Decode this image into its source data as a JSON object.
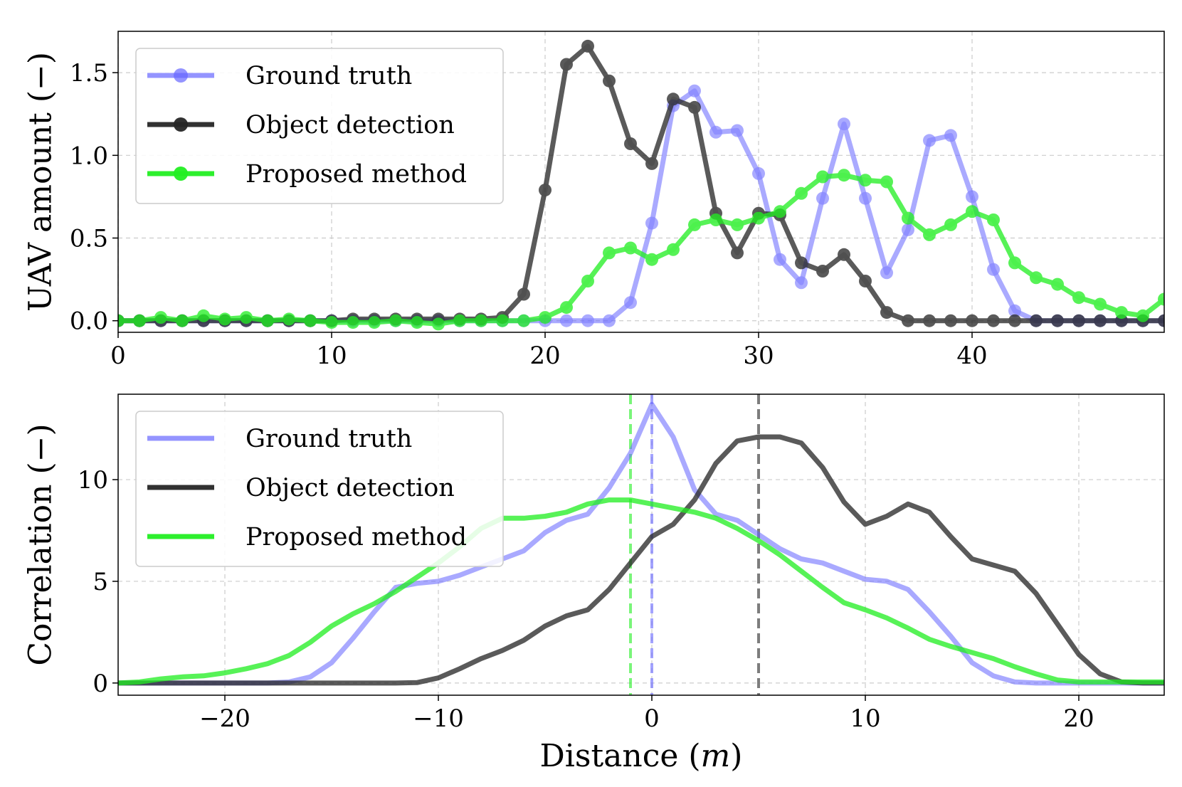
{
  "chart_data": [
    {
      "type": "line",
      "xlabel": "",
      "ylabel": "UAV amount (−)",
      "xlim": [
        0,
        49
      ],
      "ylim": [
        -0.07,
        1.75
      ],
      "xticks": [
        0,
        10,
        20,
        30,
        40
      ],
      "xtick_labels": [
        "0",
        "10",
        "20",
        "30",
        "40"
      ],
      "yticks": [
        0.0,
        0.5,
        1.0,
        1.5
      ],
      "ytick_labels": [
        "0.0",
        "0.5",
        "1.0",
        "1.5"
      ],
      "grid": true,
      "legend_position": "top-left",
      "markers": true,
      "x": [
        0,
        1,
        2,
        3,
        4,
        5,
        6,
        7,
        8,
        9,
        10,
        11,
        12,
        13,
        14,
        15,
        16,
        17,
        18,
        19,
        20,
        21,
        22,
        23,
        24,
        25,
        26,
        27,
        28,
        29,
        30,
        31,
        32,
        33,
        34,
        35,
        36,
        37,
        38,
        39,
        40,
        41,
        42,
        43,
        44,
        45,
        46,
        47,
        48,
        49
      ],
      "series": [
        {
          "name": "Ground truth",
          "color": "#6666ff",
          "values": [
            0,
            0,
            0,
            0,
            0,
            0,
            0,
            0,
            0,
            0,
            0,
            0,
            0,
            0,
            0,
            0,
            0,
            0,
            0,
            0,
            0,
            0,
            0,
            0,
            0.11,
            0.59,
            1.3,
            1.39,
            1.14,
            1.15,
            0.89,
            0.37,
            0.23,
            0.74,
            1.19,
            0.74,
            0.29,
            0.55,
            1.09,
            1.12,
            0.75,
            0.31,
            0.06,
            0,
            0,
            0,
            0,
            0,
            0,
            0
          ]
        },
        {
          "name": "Object detection",
          "color": "#262626",
          "values": [
            0,
            0,
            0,
            0,
            0,
            0,
            0,
            0,
            0,
            0,
            0,
            0.01,
            0.01,
            0.01,
            0.01,
            0.01,
            0.01,
            0.01,
            0.02,
            0.16,
            0.79,
            1.55,
            1.66,
            1.45,
            1.07,
            0.95,
            1.34,
            1.29,
            0.65,
            0.41,
            0.65,
            0.64,
            0.35,
            0.3,
            0.4,
            0.24,
            0.05,
            0,
            0,
            0,
            0,
            0,
            0,
            0,
            0,
            0,
            0,
            0,
            0,
            0
          ]
        },
        {
          "name": "Proposed method",
          "color": "#22ee22",
          "values": [
            0,
            0,
            0.02,
            0,
            0.03,
            0.01,
            0.02,
            0,
            0.01,
            0,
            -0.01,
            -0.01,
            -0.01,
            0,
            -0.01,
            -0.02,
            0,
            0,
            0,
            0,
            0.02,
            0.08,
            0.24,
            0.41,
            0.44,
            0.37,
            0.43,
            0.58,
            0.61,
            0.58,
            0.62,
            0.66,
            0.77,
            0.87,
            0.88,
            0.85,
            0.84,
            0.62,
            0.52,
            0.58,
            0.66,
            0.61,
            0.35,
            0.26,
            0.22,
            0.14,
            0.1,
            0.05,
            0.03,
            0.13
          ]
        }
      ]
    },
    {
      "type": "line",
      "xlabel": "Distance (m)",
      "ylabel": "Correlation (−)",
      "xlim": [
        -25,
        24
      ],
      "ylim": [
        -0.6,
        14.2
      ],
      "xticks": [
        -20,
        -10,
        0,
        10,
        20
      ],
      "xtick_labels": [
        "−20",
        "−10",
        "0",
        "10",
        "20"
      ],
      "yticks": [
        0,
        5,
        10
      ],
      "ytick_labels": [
        "0",
        "5",
        "10"
      ],
      "grid": true,
      "legend_position": "top-left",
      "markers": false,
      "x": [
        -25,
        -24,
        -23,
        -22,
        -21,
        -20,
        -19,
        -18,
        -17,
        -16,
        -15,
        -14,
        -13,
        -12,
        -11,
        -10,
        -9,
        -8,
        -7,
        -6,
        -5,
        -4,
        -3,
        -2,
        -1,
        0,
        1,
        2,
        3,
        4,
        5,
        6,
        7,
        8,
        9,
        10,
        11,
        12,
        13,
        14,
        15,
        16,
        17,
        18,
        19,
        20,
        21,
        22,
        23,
        24
      ],
      "series": [
        {
          "name": "Ground truth",
          "color": "#6666ff",
          "values": [
            0,
            0,
            0,
            0,
            0,
            0,
            0,
            0,
            0.05,
            0.3,
            1.0,
            2.2,
            3.5,
            4.7,
            4.9,
            5.0,
            5.3,
            5.7,
            6.1,
            6.5,
            7.4,
            8.0,
            8.3,
            9.6,
            11.3,
            13.7,
            12.1,
            9.5,
            8.3,
            8.0,
            7.3,
            6.6,
            6.1,
            5.9,
            5.5,
            5.1,
            5.0,
            4.6,
            3.5,
            2.3,
            1.0,
            0.35,
            0.05,
            0,
            0,
            0,
            0,
            0,
            0,
            0
          ]
        },
        {
          "name": "Object detection",
          "color": "#262626",
          "values": [
            0,
            0,
            0,
            0,
            0,
            0,
            0,
            0,
            0,
            0,
            0,
            0,
            0,
            0,
            0.02,
            0.25,
            0.7,
            1.2,
            1.6,
            2.1,
            2.8,
            3.3,
            3.6,
            4.6,
            5.9,
            7.2,
            7.8,
            9.0,
            10.8,
            11.9,
            12.1,
            12.1,
            11.8,
            10.6,
            8.9,
            7.8,
            8.2,
            8.8,
            8.4,
            7.2,
            6.1,
            5.8,
            5.5,
            4.4,
            2.9,
            1.4,
            0.45,
            0.05,
            0,
            0
          ]
        },
        {
          "name": "Proposed method",
          "color": "#22ee22",
          "values": [
            0,
            0.05,
            0.2,
            0.3,
            0.35,
            0.5,
            0.7,
            0.95,
            1.35,
            2.0,
            2.8,
            3.4,
            3.9,
            4.5,
            5.2,
            5.9,
            6.7,
            7.6,
            8.1,
            8.1,
            8.2,
            8.4,
            8.8,
            9.0,
            9.0,
            8.8,
            8.6,
            8.4,
            8.1,
            7.6,
            7.0,
            6.3,
            5.5,
            4.7,
            3.95,
            3.6,
            3.2,
            2.7,
            2.15,
            1.8,
            1.5,
            1.2,
            0.8,
            0.45,
            0.15,
            0.05,
            0.05,
            0.05,
            0.05,
            0.05
          ]
        }
      ],
      "vlines": [
        {
          "x": -1,
          "color": "#22ee22"
        },
        {
          "x": 0,
          "color": "#6666ff"
        },
        {
          "x": 5,
          "color": "#262626"
        }
      ]
    }
  ]
}
